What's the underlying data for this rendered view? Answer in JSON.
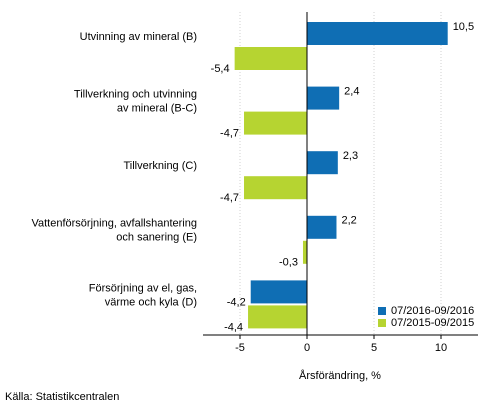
{
  "chart_data": {
    "type": "bar",
    "orientation": "horizontal",
    "categories": [
      [
        "Utvinning av mineral (B)"
      ],
      [
        "Tillverkning och utvinning",
        "av mineral (B-C)"
      ],
      [
        "Tillverkning (C)"
      ],
      [
        "Vattenförsörjning, avfallshantering",
        "och sanering (E)"
      ],
      [
        "Försörjning av el, gas,",
        "värme och kyla (D)"
      ]
    ],
    "series": [
      {
        "name": "07/2016-09/2016",
        "color": "#0f6eb4",
        "values": [
          10.5,
          2.4,
          2.3,
          2.2,
          -4.2
        ],
        "labels": [
          "10,5",
          "2,4",
          "2,3",
          "2,2",
          "-4,2"
        ]
      },
      {
        "name": "07/2015-09/2015",
        "color": "#b6d431",
        "values": [
          -5.4,
          -4.7,
          -4.7,
          -0.3,
          -4.4
        ],
        "labels": [
          "-5,4",
          "-4,7",
          "-4,7",
          "-0,3",
          "-4,4"
        ]
      }
    ],
    "xlim": [
      -7.5,
      12.5
    ],
    "xticks": [
      -5,
      0,
      5,
      10
    ],
    "xtick_labels": [
      "-5",
      "0",
      "5",
      "10"
    ],
    "xlabel": "Årsförändring, %",
    "grid": "vertical",
    "legend": "bottom-right"
  },
  "source": "Källa: Statistikcentralen"
}
